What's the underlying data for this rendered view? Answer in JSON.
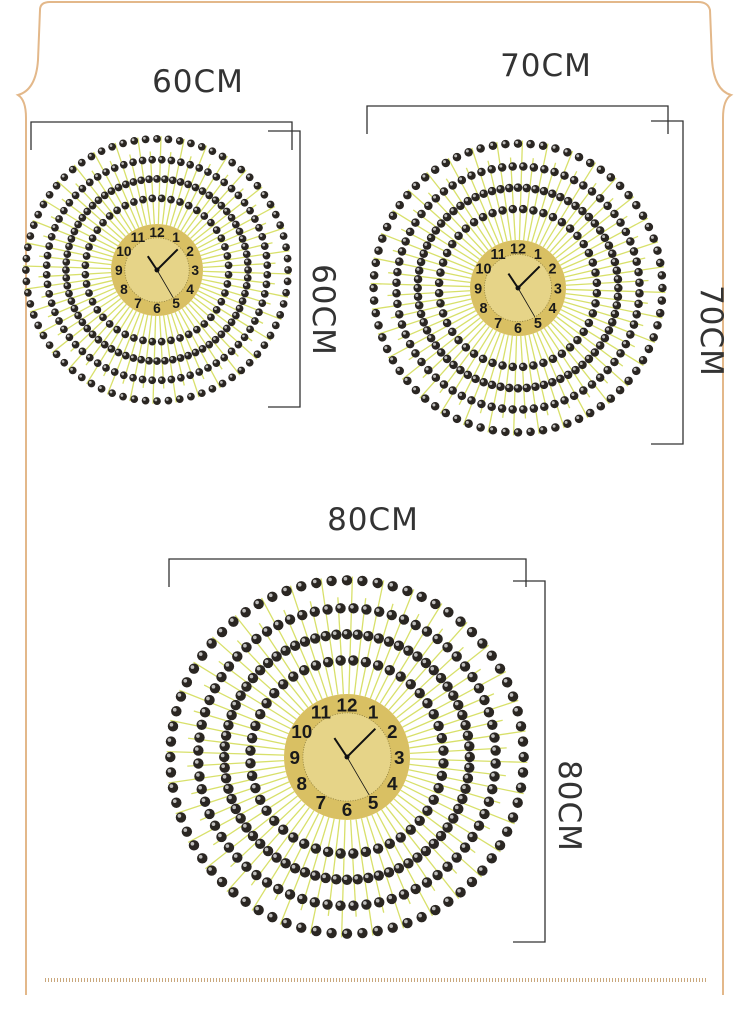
{
  "sizes": [
    {
      "width_label": "60CM",
      "height_label": "60CM"
    },
    {
      "width_label": "70CM",
      "height_label": "70CM"
    },
    {
      "width_label": "80CM",
      "height_label": "80CM"
    }
  ],
  "clock_numerals": [
    "12",
    "1",
    "2",
    "3",
    "4",
    "5",
    "6",
    "7",
    "8",
    "9",
    "10",
    "11"
  ],
  "colors": {
    "frame": "#e3b88a",
    "gold": "#d9c063",
    "ray": "#d8e06a",
    "crystal": "#2a2622",
    "text": "#333333"
  }
}
